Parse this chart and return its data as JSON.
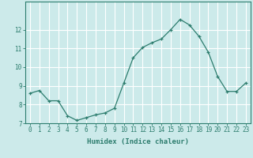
{
  "x": [
    0,
    1,
    2,
    3,
    4,
    5,
    6,
    7,
    8,
    9,
    10,
    11,
    12,
    13,
    14,
    15,
    16,
    17,
    18,
    19,
    20,
    21,
    22,
    23
  ],
  "y": [
    8.6,
    8.75,
    8.2,
    8.2,
    7.4,
    7.15,
    7.3,
    7.45,
    7.55,
    7.8,
    9.15,
    10.5,
    11.05,
    11.3,
    11.5,
    12.0,
    12.55,
    12.25,
    11.65,
    10.8,
    9.5,
    8.7,
    8.7,
    9.15
  ],
  "line_color": "#2d7d6e",
  "marker": "+",
  "bg_color": "#cceaea",
  "grid_color": "#ffffff",
  "xlabel": "Humidex (Indice chaleur)",
  "ylim": [
    7,
    13
  ],
  "xlim": [
    -0.5,
    23.5
  ],
  "yticks": [
    7,
    8,
    9,
    10,
    11,
    12
  ],
  "xticks": [
    0,
    1,
    2,
    3,
    4,
    5,
    6,
    7,
    8,
    9,
    10,
    11,
    12,
    13,
    14,
    15,
    16,
    17,
    18,
    19,
    20,
    21,
    22,
    23
  ],
  "axis_fontsize": 5.5,
  "label_fontsize": 6.5
}
